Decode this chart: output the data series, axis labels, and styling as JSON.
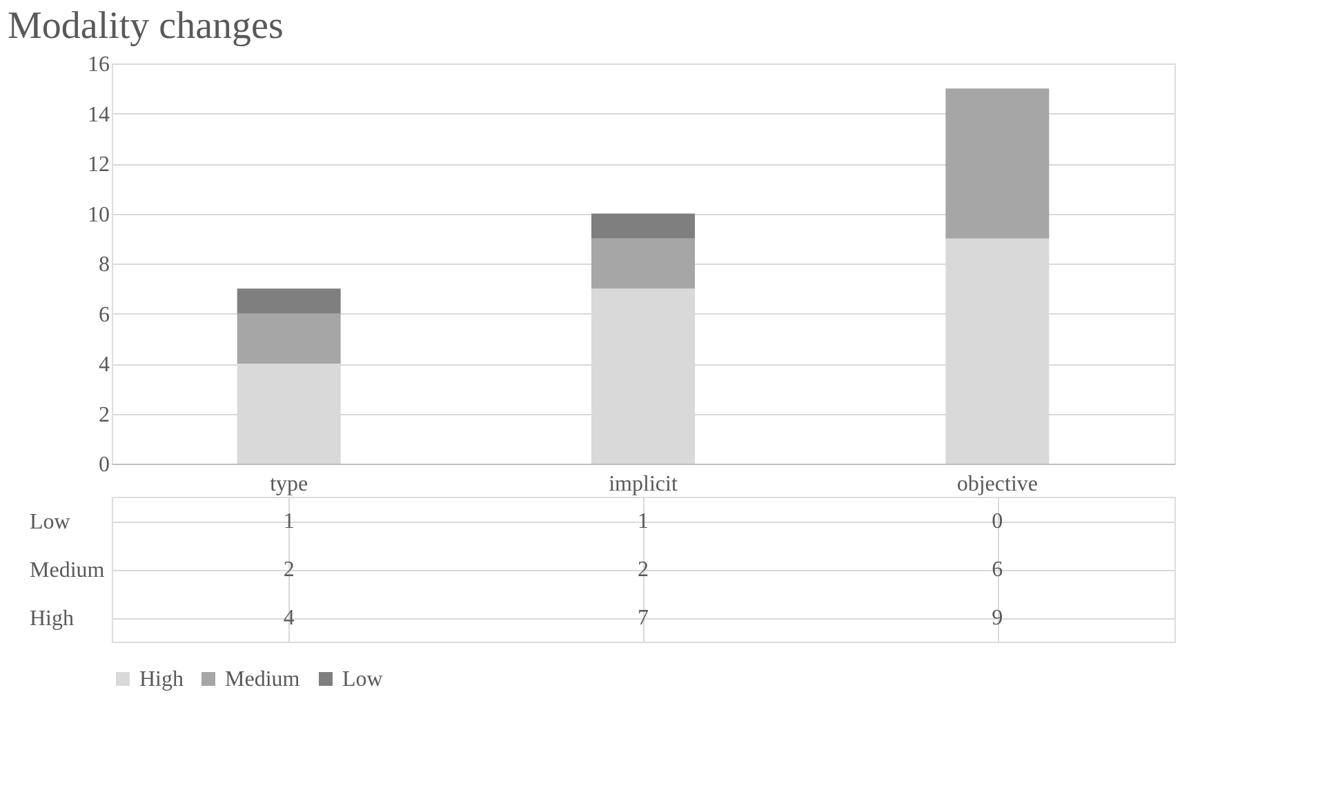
{
  "chart_data": {
    "type": "bar",
    "title": "Modality changes",
    "stacked": true,
    "data_labels": true,
    "categories": [
      "type",
      "implicit",
      "objective"
    ],
    "series": [
      {
        "name": "High",
        "color": "#d9d9d9",
        "values": [
          4,
          7,
          9
        ]
      },
      {
        "name": "Medium",
        "color": "#a6a6a6",
        "values": [
          2,
          2,
          6
        ]
      },
      {
        "name": "Low",
        "color": "#7f7f7f",
        "values": [
          1,
          1,
          0
        ]
      }
    ],
    "ylim": [
      0,
      16
    ],
    "yticks": [
      0,
      2,
      4,
      6,
      8,
      10,
      12,
      14,
      16
    ],
    "grid": "y",
    "legend": "bottom"
  }
}
